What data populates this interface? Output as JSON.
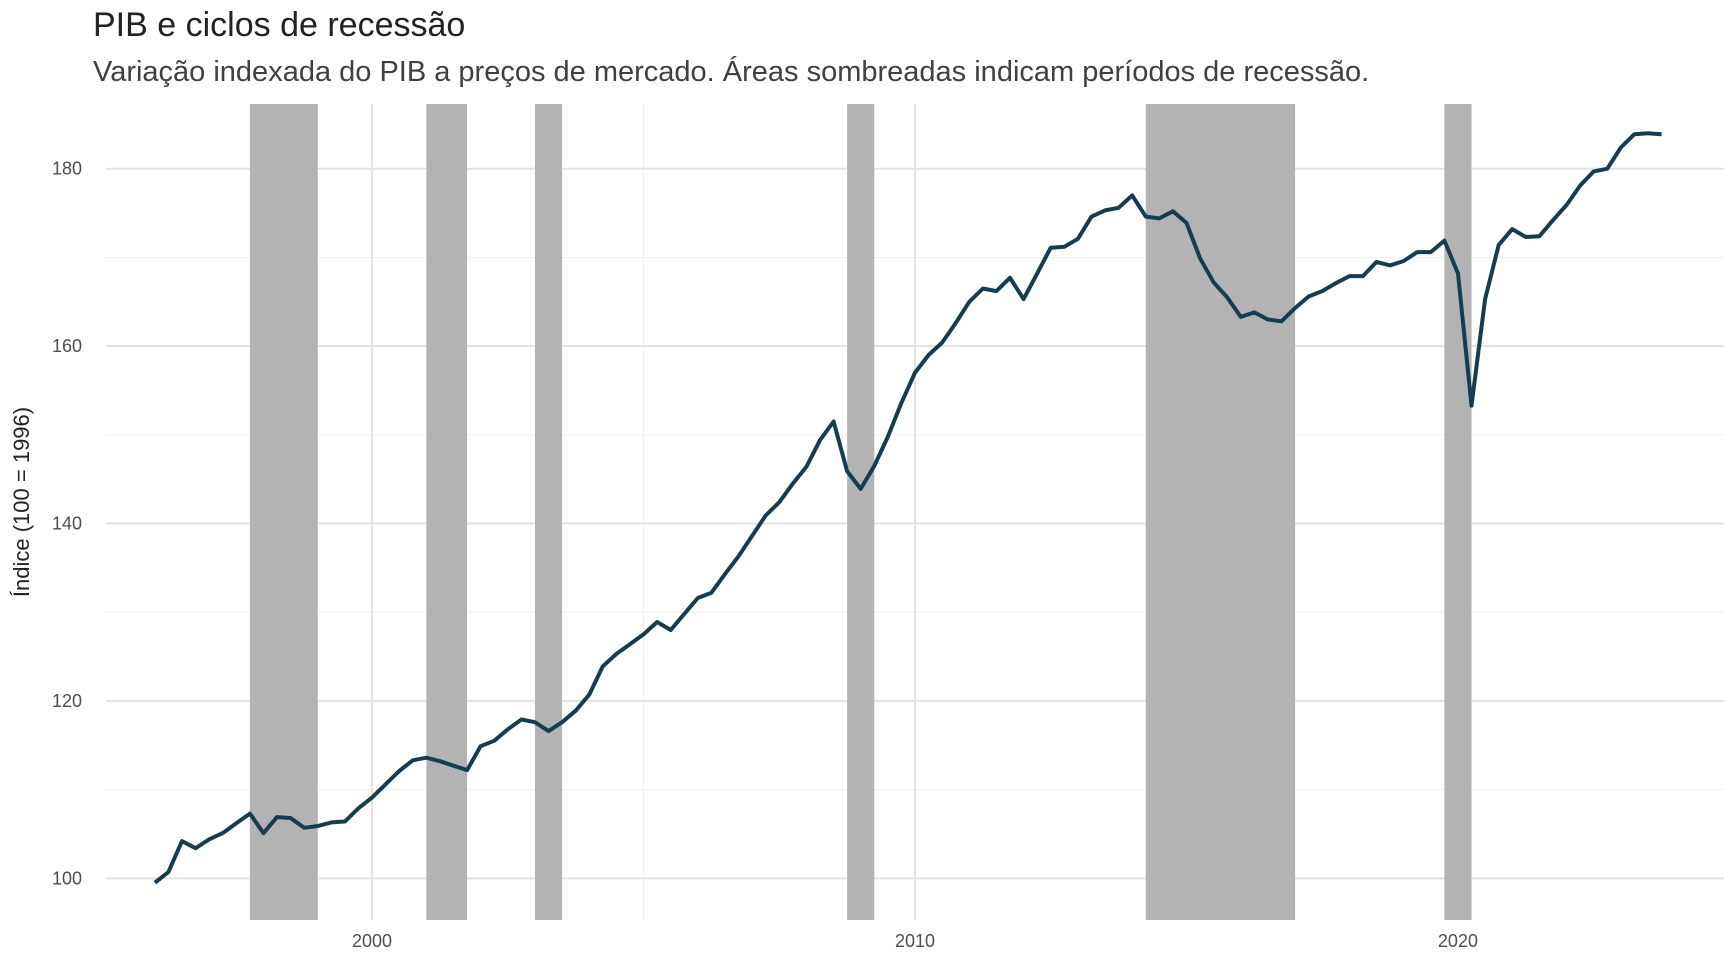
{
  "chart_data": {
    "type": "line",
    "title": "PIB e ciclos de recessão",
    "subtitle": "Variação indexada do PIB a preços de mercado. Áreas sombreadas indicam períodos de recessão.",
    "xlabel": "",
    "ylabel": "Índice (100 = 1996)",
    "xlim": [
      1995.1,
      2024.9
    ],
    "ylim": [
      95.3,
      187.3
    ],
    "x_ticks": [
      {
        "value": 2000,
        "label": "2000"
      },
      {
        "value": 2010,
        "label": "2010"
      },
      {
        "value": 2020,
        "label": "2020"
      }
    ],
    "y_ticks": [
      {
        "value": 100,
        "label": "100"
      },
      {
        "value": 120,
        "label": "120"
      },
      {
        "value": 140,
        "label": "140"
      },
      {
        "value": 160,
        "label": "160"
      },
      {
        "value": 180,
        "label": "180"
      }
    ],
    "recessions": [
      {
        "start": 1997.75,
        "end": 1999.0
      },
      {
        "start": 2001.0,
        "end": 2001.75
      },
      {
        "start": 2003.0,
        "end": 2003.5
      },
      {
        "start": 2008.75,
        "end": 2009.25
      },
      {
        "start": 2014.25,
        "end": 2017.0
      },
      {
        "start": 2019.75,
        "end": 2020.25
      }
    ],
    "grid": true,
    "legend": "none",
    "colors": {
      "line": "#163d4f",
      "recession": "#b3b3b3",
      "grid": "#e3e3e3"
    },
    "series": [
      {
        "name": "PIB",
        "x": [
          1996.0,
          1996.25,
          1996.5,
          1996.75,
          1997.0,
          1997.25,
          1997.5,
          1997.75,
          1998.0,
          1998.25,
          1998.5,
          1998.75,
          1999.0,
          1999.25,
          1999.5,
          1999.75,
          2000.0,
          2000.25,
          2000.5,
          2000.75,
          2001.0,
          2001.25,
          2001.5,
          2001.75,
          2002.0,
          2002.25,
          2002.5,
          2002.75,
          2003.0,
          2003.25,
          2003.5,
          2003.75,
          2004.0,
          2004.25,
          2004.5,
          2004.75,
          2005.0,
          2005.25,
          2005.5,
          2005.75,
          2006.0,
          2006.25,
          2006.5,
          2006.75,
          2007.0,
          2007.25,
          2007.5,
          2007.75,
          2008.0,
          2008.25,
          2008.5,
          2008.75,
          2009.0,
          2009.25,
          2009.5,
          2009.75,
          2010.0,
          2010.25,
          2010.5,
          2010.75,
          2011.0,
          2011.25,
          2011.5,
          2011.75,
          2012.0,
          2012.25,
          2012.5,
          2012.75,
          2013.0,
          2013.25,
          2013.5,
          2013.75,
          2014.0,
          2014.25,
          2014.5,
          2014.75,
          2015.0,
          2015.25,
          2015.5,
          2015.75,
          2016.0,
          2016.25,
          2016.5,
          2016.75,
          2017.0,
          2017.25,
          2017.5,
          2017.75,
          2018.0,
          2018.25,
          2018.5,
          2018.75,
          2019.0,
          2019.25,
          2019.5,
          2019.75,
          2020.0,
          2020.25,
          2020.5,
          2020.75,
          2021.0,
          2021.25,
          2021.5,
          2021.75,
          2022.0,
          2022.25,
          2022.5,
          2022.75,
          2023.0,
          2023.25,
          2023.5,
          2023.75
        ],
        "values": [
          99.5,
          100.7,
          104.2,
          103.4,
          104.4,
          105.1,
          106.2,
          107.3,
          105.1,
          106.9,
          106.8,
          105.7,
          105.9,
          106.3,
          106.4,
          107.9,
          109.1,
          110.6,
          112.1,
          113.3,
          113.6,
          113.2,
          112.7,
          112.2,
          114.9,
          115.5,
          116.8,
          117.9,
          117.6,
          116.6,
          117.6,
          118.9,
          120.7,
          123.9,
          125.3,
          126.4,
          127.5,
          128.9,
          128.0,
          129.8,
          131.6,
          132.2,
          134.3,
          136.3,
          138.6,
          140.9,
          142.4,
          144.5,
          146.4,
          149.4,
          151.5,
          145.9,
          143.9,
          146.5,
          149.8,
          153.6,
          157.0,
          159.0,
          160.4,
          162.6,
          165.0,
          166.5,
          166.2,
          167.7,
          165.3,
          168.2,
          171.1,
          171.2,
          172.1,
          174.6,
          175.3,
          175.6,
          177.0,
          174.6,
          174.4,
          175.2,
          173.9,
          169.9,
          167.2,
          165.5,
          163.3,
          163.8,
          163.0,
          162.8,
          164.3,
          165.6,
          166.2,
          167.1,
          167.9,
          167.9,
          169.5,
          169.1,
          169.6,
          170.6,
          170.6,
          171.9,
          168.2,
          153.3,
          165.3,
          171.4,
          173.2,
          172.3,
          172.4,
          174.2,
          175.9,
          178.1,
          179.7,
          180.0,
          182.4,
          183.9,
          184.0,
          183.9
        ]
      }
    ]
  }
}
